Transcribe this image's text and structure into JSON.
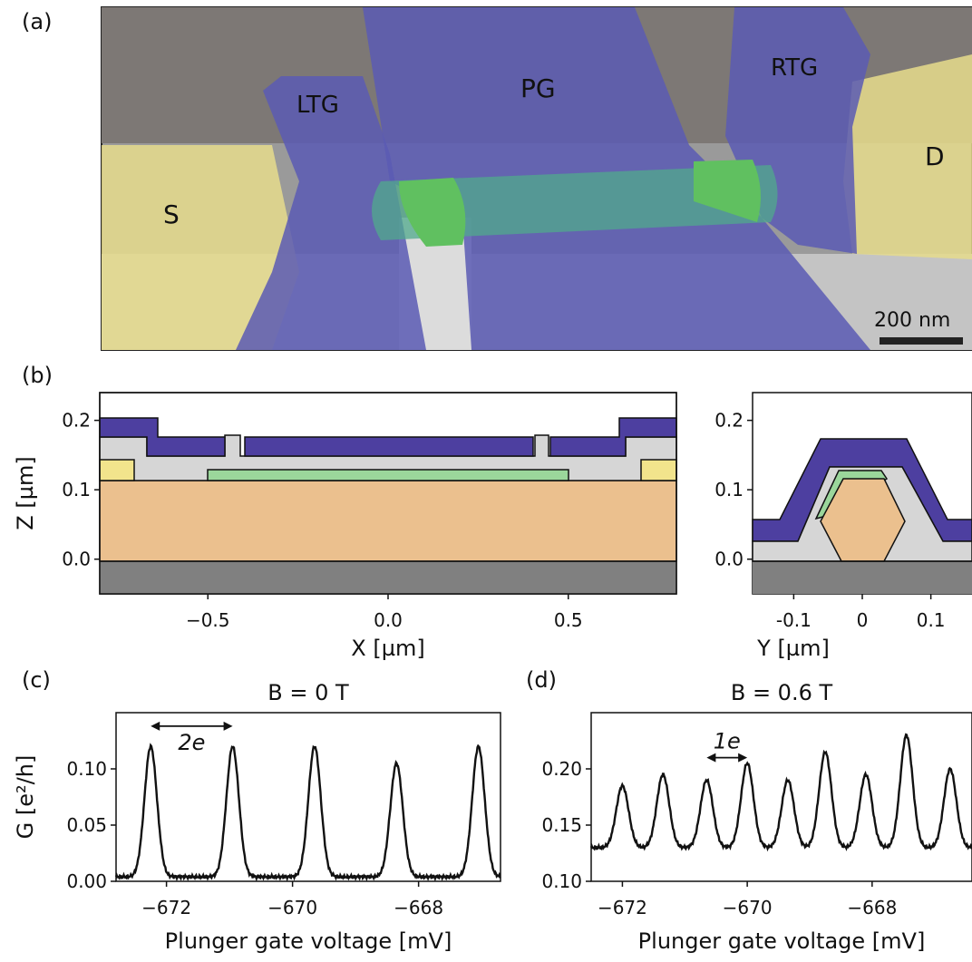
{
  "panel_a": {
    "letter": "(a)",
    "labels": {
      "lt": "LTG",
      "pg": "PG",
      "rtg": "RTG",
      "s": "S",
      "d": "D"
    },
    "scalebar": "200 nm",
    "colors": {
      "gate": "#5a5ab4",
      "contact": "#e6dc8c",
      "wire": "#50aa8c",
      "island": "#60c060"
    }
  },
  "panel_b": {
    "letter": "(b)",
    "colors": {
      "gate": "#4d3fa0",
      "dielectric": "#d6d6d6",
      "contact": "#f2e48c",
      "shell": "#9bd69b",
      "core": "#ebc08e",
      "substrate": "#808080"
    }
  },
  "chart_data": [
    {
      "id": "b-left",
      "type": "diagram",
      "xlabel": "X [µm]",
      "ylabel": "Z [µm]",
      "xlim": [
        -0.8,
        0.8
      ],
      "ylim": [
        -0.05,
        0.24
      ],
      "xticks": [
        "−0.5",
        "0.0",
        "0.5"
      ],
      "xtick_values": [
        -0.5,
        0.0,
        0.5
      ],
      "yticks": [
        "0.0",
        "0.1",
        "0.2"
      ],
      "ytick_values": [
        0.0,
        0.1,
        0.2
      ]
    },
    {
      "id": "b-right",
      "type": "diagram",
      "xlabel": "Y [µm]",
      "ylabel": "",
      "xlim": [
        -0.16,
        0.16
      ],
      "ylim": [
        -0.05,
        0.24
      ],
      "xticks": [
        "-0.1",
        "0",
        "0.1"
      ],
      "xtick_values": [
        -0.1,
        0.0,
        0.1
      ],
      "yticks": [
        "0.0",
        "0.1",
        "0.2"
      ],
      "ytick_values": [
        0.0,
        0.1,
        0.2
      ]
    },
    {
      "id": "c",
      "type": "line",
      "letter": "(c)",
      "title": "B = 0 T",
      "xlabel": "Plunger gate voltage [mV]",
      "ylabel": "G [e²/h]",
      "xlim": [
        -672.8,
        -666.7
      ],
      "ylim": [
        0.0,
        0.15
      ],
      "xticks": [
        "−672",
        "−670",
        "−668"
      ],
      "xtick_values": [
        -672,
        -670,
        -668
      ],
      "yticks": [
        "0.00",
        "0.05",
        "0.10"
      ],
      "ytick_values": [
        0.0,
        0.05,
        0.1
      ],
      "peaks": [
        {
          "x": -672.25,
          "height": 0.12
        },
        {
          "x": -670.95,
          "height": 0.12
        },
        {
          "x": -669.65,
          "height": 0.12
        },
        {
          "x": -668.35,
          "height": 0.105
        },
        {
          "x": -667.05,
          "height": 0.12
        }
      ],
      "annotation": "2e"
    },
    {
      "id": "d",
      "type": "line",
      "letter": "(d)",
      "title": "B = 0.6 T",
      "xlabel": "Plunger gate voltage [mV]",
      "ylabel": "",
      "xlim": [
        -672.5,
        -666.4
      ],
      "ylim": [
        0.1,
        0.25
      ],
      "xticks": [
        "−672",
        "−670",
        "−668"
      ],
      "xtick_values": [
        -672,
        -670,
        -668
      ],
      "yticks": [
        "0.10",
        "0.15",
        "0.20"
      ],
      "ytick_values": [
        0.1,
        0.15,
        0.2
      ],
      "peaks": [
        {
          "x": -672.0,
          "height": 0.185
        },
        {
          "x": -671.35,
          "height": 0.195
        },
        {
          "x": -670.65,
          "height": 0.19
        },
        {
          "x": -670.0,
          "height": 0.205
        },
        {
          "x": -669.35,
          "height": 0.19
        },
        {
          "x": -668.75,
          "height": 0.215
        },
        {
          "x": -668.1,
          "height": 0.195
        },
        {
          "x": -667.45,
          "height": 0.23
        },
        {
          "x": -666.75,
          "height": 0.2
        }
      ],
      "annotation": "1e"
    }
  ]
}
